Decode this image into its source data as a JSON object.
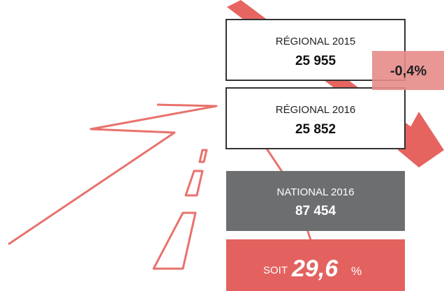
{
  "boxes": [
    {
      "label": "RÉGIONAL 2015",
      "value": "25 955"
    },
    {
      "label": "RÉGIONAL 2016",
      "value": "25 852"
    },
    {
      "label": "NATIONAL 2016",
      "value": "87 454"
    }
  ],
  "change": "-0,4%",
  "share": {
    "prefix": "SOIT",
    "value": "29,6",
    "unit": "%"
  }
}
